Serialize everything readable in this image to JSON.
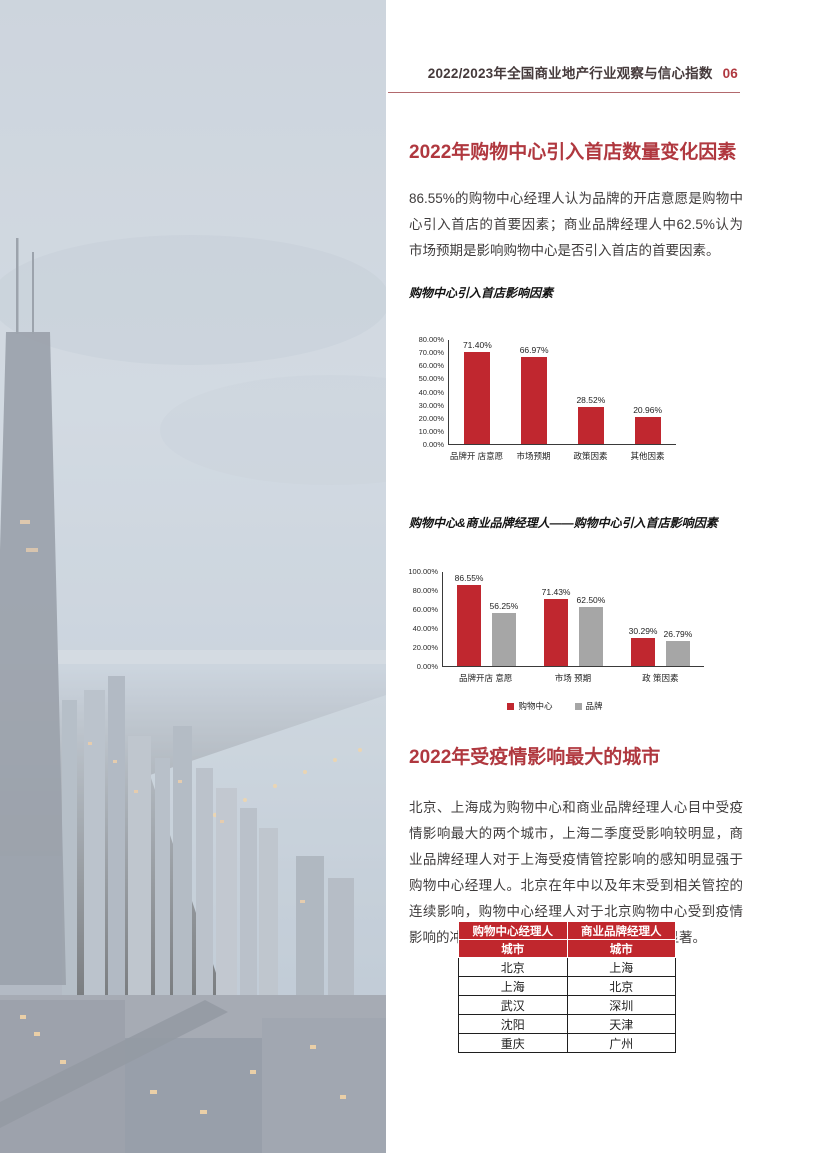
{
  "header": {
    "title": "2022/2023年全国商业地产行业观察与信心指数",
    "page_number": "06"
  },
  "section1": {
    "title": "2022年购物中心引入首店数量变化因素",
    "paragraph": "86.55%的购物中心经理人认为品牌的开店意愿是购物中心引入首店的首要因素；商业品牌经理人中62.5%认为市场预期是影响购物中心是否引入首店的首要因素。"
  },
  "section2": {
    "title": "2022年受疫情影响最大的城市",
    "paragraph": "北京、上海成为购物中心和商业品牌经理人心目中受疫情影响最大的两个城市，上海二季度受影响较明显，商业品牌经理人对于上海受疫情管控影响的感知明显强于购物中心经理人。北京在年中以及年末受到相关管控的连续影响，购物中心经理人对于北京购物中心受到疫情影响的冲击感受相较于商业品牌经理人更加显著。"
  },
  "colors": {
    "accent_red": "#b0383f",
    "bar_red": "#c0272f",
    "bar_gray": "#a6a6a6",
    "table_header_red": "#c0272d"
  },
  "chart_data": [
    {
      "type": "bar",
      "title": "购物中心引入首店影响因素",
      "categories": [
        "品牌开 店意愿",
        "市场预期",
        "政策因素",
        "其他因素"
      ],
      "values": [
        71.4,
        66.97,
        28.52,
        20.96
      ],
      "ylim": [
        0,
        80
      ],
      "yticks": [
        "0.00%",
        "10.00%",
        "20.00%",
        "30.00%",
        "40.00%",
        "50.00%",
        "60.00%",
        "70.00%",
        "80.00%"
      ],
      "bar_color": "#c0272f",
      "grid": false,
      "legend": null
    },
    {
      "type": "bar",
      "title": "购物中心&商业品牌经理人——购物中心引入首店影响因素",
      "categories": [
        "品牌开店 意愿",
        "市场 预期",
        "政 策因素"
      ],
      "series": [
        {
          "name": "购物中心",
          "color": "#c0272f",
          "values": [
            86.55,
            71.43,
            30.29
          ]
        },
        {
          "name": "品牌",
          "color": "#a6a6a6",
          "values": [
            56.25,
            62.5,
            26.79
          ]
        }
      ],
      "ylim": [
        0,
        100
      ],
      "yticks": [
        "0.00%",
        "20.00%",
        "40.00%",
        "60.00%",
        "80.00%",
        "100.00%"
      ],
      "grid": false,
      "legend": [
        "购物中心",
        "品牌"
      ],
      "legend_position": "bottom"
    }
  ],
  "table": {
    "header_row1": [
      "购物中心经理人",
      "商业品牌经理人"
    ],
    "header_row2": [
      "城市",
      "城市"
    ],
    "rows": [
      [
        "北京",
        "上海"
      ],
      [
        "上海",
        "北京"
      ],
      [
        "武汉",
        "深圳"
      ],
      [
        "沈阳",
        "天津"
      ],
      [
        "重庆",
        "广州"
      ]
    ]
  }
}
